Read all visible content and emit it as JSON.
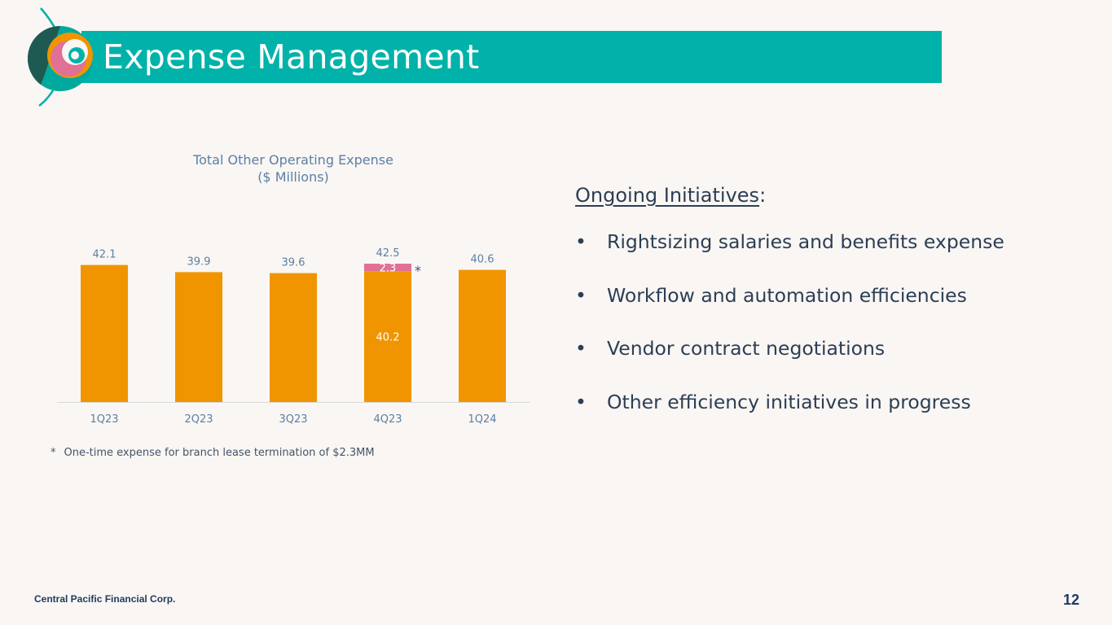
{
  "header": {
    "title": "Expense Management"
  },
  "colors": {
    "title_bar": "#00b2a9",
    "bar_main": "#f09500",
    "bar_onetime": "#e07095",
    "chart_text": "#5b7fa6",
    "body_text": "#2c3e55"
  },
  "chart_data": {
    "type": "bar",
    "stacked": true,
    "title": "Total Other Operating Expense",
    "subtitle": "($ Millions)",
    "categories": [
      "1Q23",
      "2Q23",
      "3Q23",
      "4Q23",
      "1Q24"
    ],
    "series": [
      {
        "values": [
          42.1,
          39.9,
          39.6,
          40.2,
          40.6
        ]
      },
      {
        "values": [
          0,
          0,
          0,
          2.3,
          0
        ]
      }
    ],
    "totals": [
      42.1,
      39.9,
      39.6,
      42.5,
      40.6
    ],
    "segment_labels": {
      "4Q23": [
        "40.2",
        "2.3"
      ]
    },
    "annotation": "*",
    "ylim": [
      0,
      45
    ],
    "grid": false
  },
  "footnote": {
    "marker": "*",
    "text": "One-time expense for branch lease termination of $2.3MM"
  },
  "initiatives": {
    "heading": "Ongoing Initiatives",
    "heading_suffix": ":",
    "bullet": "•",
    "items": [
      "Rightsizing salaries and benefits expense",
      "Workflow and automation efficiencies",
      "Vendor contract negotiations",
      "Other efficiency initiatives in progress"
    ]
  },
  "footer": {
    "company": "Central Pacific Financial Corp.",
    "page_number": "12"
  }
}
